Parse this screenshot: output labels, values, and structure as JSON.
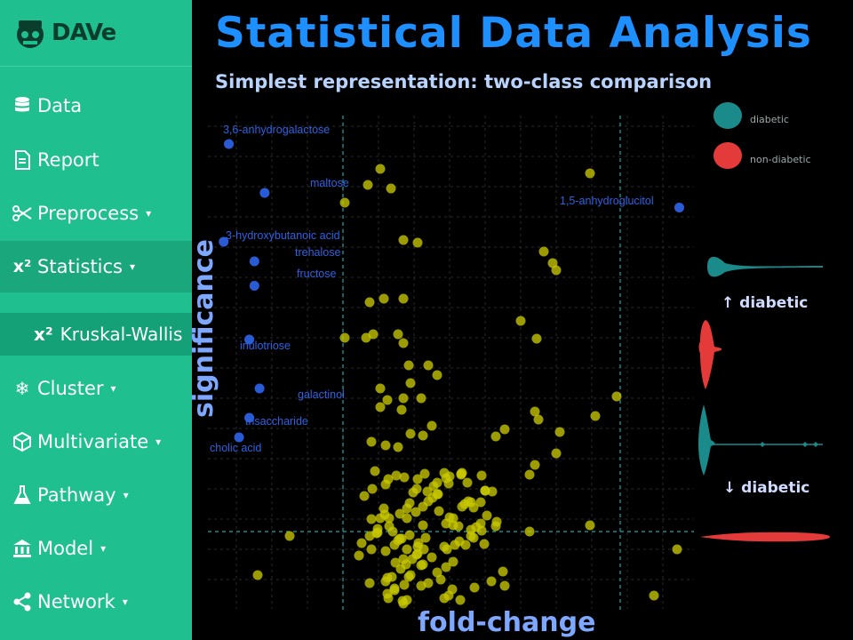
{
  "app": {
    "logo_text": "DAVe"
  },
  "sidebar": {
    "items": [
      {
        "label": "Data",
        "icon": "database-icon",
        "caret": ""
      },
      {
        "label": "Report",
        "icon": "document-icon",
        "caret": ""
      },
      {
        "label": "Preprocess",
        "icon": "scissors-icon",
        "caret": "▾"
      },
      {
        "label": "Statistics",
        "icon": "chi-square-icon",
        "caret": "▾"
      },
      {
        "label": "Cluster",
        "icon": "snowflake-icon",
        "caret": "▾"
      },
      {
        "label": "Multivariate",
        "icon": "cube-icon",
        "caret": "▾"
      },
      {
        "label": "Pathway",
        "icon": "flask-icon",
        "caret": "▾"
      },
      {
        "label": "Model",
        "icon": "bank-icon",
        "caret": "▾"
      },
      {
        "label": "Network",
        "icon": "share-icon",
        "caret": "▾"
      }
    ],
    "sub_item": {
      "label": "Kruskal-Wallis",
      "icon": "chi-square-icon"
    }
  },
  "header": {
    "title": "Statistical Data Analysis",
    "subtitle": "Simplest representation: two-class comparison"
  },
  "colors": {
    "sidebar_bg": "#1fbf8f",
    "title": "#1e8fff",
    "point_yellow": "#c8c800",
    "point_blue": "#2a5bd7",
    "diabetic": "#1b8a8a",
    "non_diabetic": "#e53a3a"
  },
  "legend": {
    "items": [
      {
        "label": "diabetic",
        "color": "#1b8a8a"
      },
      {
        "label": "non-diabetic",
        "color": "#e53a3a"
      }
    ]
  },
  "annotations": {
    "up": "↑ diabetic",
    "down": "↓ diabetic"
  },
  "chart_data": {
    "type": "scatter",
    "xlabel": "fold-change",
    "ylabel": "significance",
    "grid": true,
    "labeled_points": [
      {
        "label": "3,6-anhydrogalactose",
        "x": 0.2,
        "y": 9.6
      },
      {
        "label": "maltose",
        "x": 0.9,
        "y": 8.6
      },
      {
        "label": "1,5-anhydroglucitol",
        "x": 9.0,
        "y": 8.3
      },
      {
        "label": "3-hydroxybutanoic acid",
        "x": 0.1,
        "y": 7.6
      },
      {
        "label": "trehalose",
        "x": 0.7,
        "y": 7.2
      },
      {
        "label": "fructose",
        "x": 0.7,
        "y": 6.7
      },
      {
        "label": "inulotriose",
        "x": 0.6,
        "y": 5.6
      },
      {
        "label": "galactinol",
        "x": 0.8,
        "y": 4.6
      },
      {
        "label": "trisaccharide",
        "x": 0.6,
        "y": 4.0
      },
      {
        "label": "cholic acid",
        "x": 0.4,
        "y": 3.6
      }
    ]
  }
}
